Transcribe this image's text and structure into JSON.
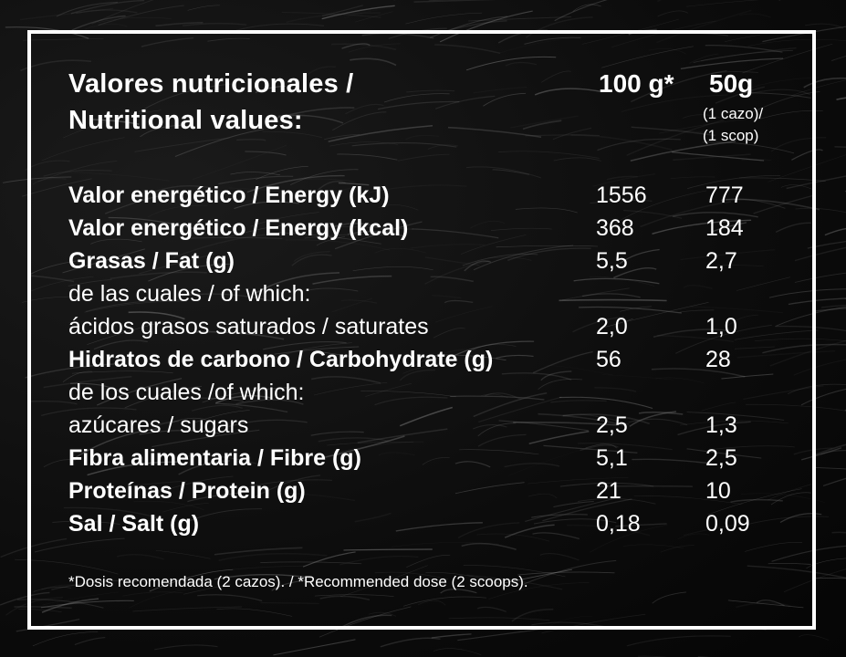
{
  "title": {
    "line1": "Valores nutricionales /",
    "line2": "Nutritional values:"
  },
  "columns": {
    "col1_header": "100 g*",
    "col2_header": "50g",
    "col2_note_line1": "(1 cazo)/",
    "col2_note_line2": "(1 scop)"
  },
  "rows": [
    {
      "label": "Valor energético / Energy (kJ)",
      "v1": "1556",
      "v2": "777",
      "bold": true
    },
    {
      "label": "Valor energético / Energy (kcal)",
      "v1": "368",
      "v2": "184",
      "bold": true
    },
    {
      "label": "Grasas / Fat (g)",
      "v1": "5,5",
      "v2": "2,7",
      "bold": true
    },
    {
      "label": "de las cuales / of which:",
      "v1": "",
      "v2": "",
      "bold": false
    },
    {
      "label": "ácidos grasos saturados / saturates",
      "v1": "2,0",
      "v2": "1,0",
      "bold": false
    },
    {
      "label": "Hidratos de carbono / Carbohydrate (g)",
      "v1": "56",
      "v2": "28",
      "bold": true
    },
    {
      "label": "de los cuales /of which:",
      "v1": "",
      "v2": "",
      "bold": false
    },
    {
      "label": "azúcares /  sugars",
      "v1": "2,5",
      "v2": "1,3",
      "bold": false
    },
    {
      "label": "Fibra alimentaria / Fibre (g)",
      "v1": "5,1",
      "v2": "2,5",
      "bold": true
    },
    {
      "label": "Proteínas / Protein (g)",
      "v1": "21",
      "v2": "10",
      "bold": true
    },
    {
      "label": "Sal / Salt  (g)",
      "v1": "0,18",
      "v2": "0,09",
      "bold": true
    }
  ],
  "footnote": "*Dosis recomendada (2 cazos). / *Recommended dose (2 scoops).",
  "colors": {
    "background": "#0b0b0b",
    "text": "#ffffff",
    "frame": "#ffffff"
  }
}
